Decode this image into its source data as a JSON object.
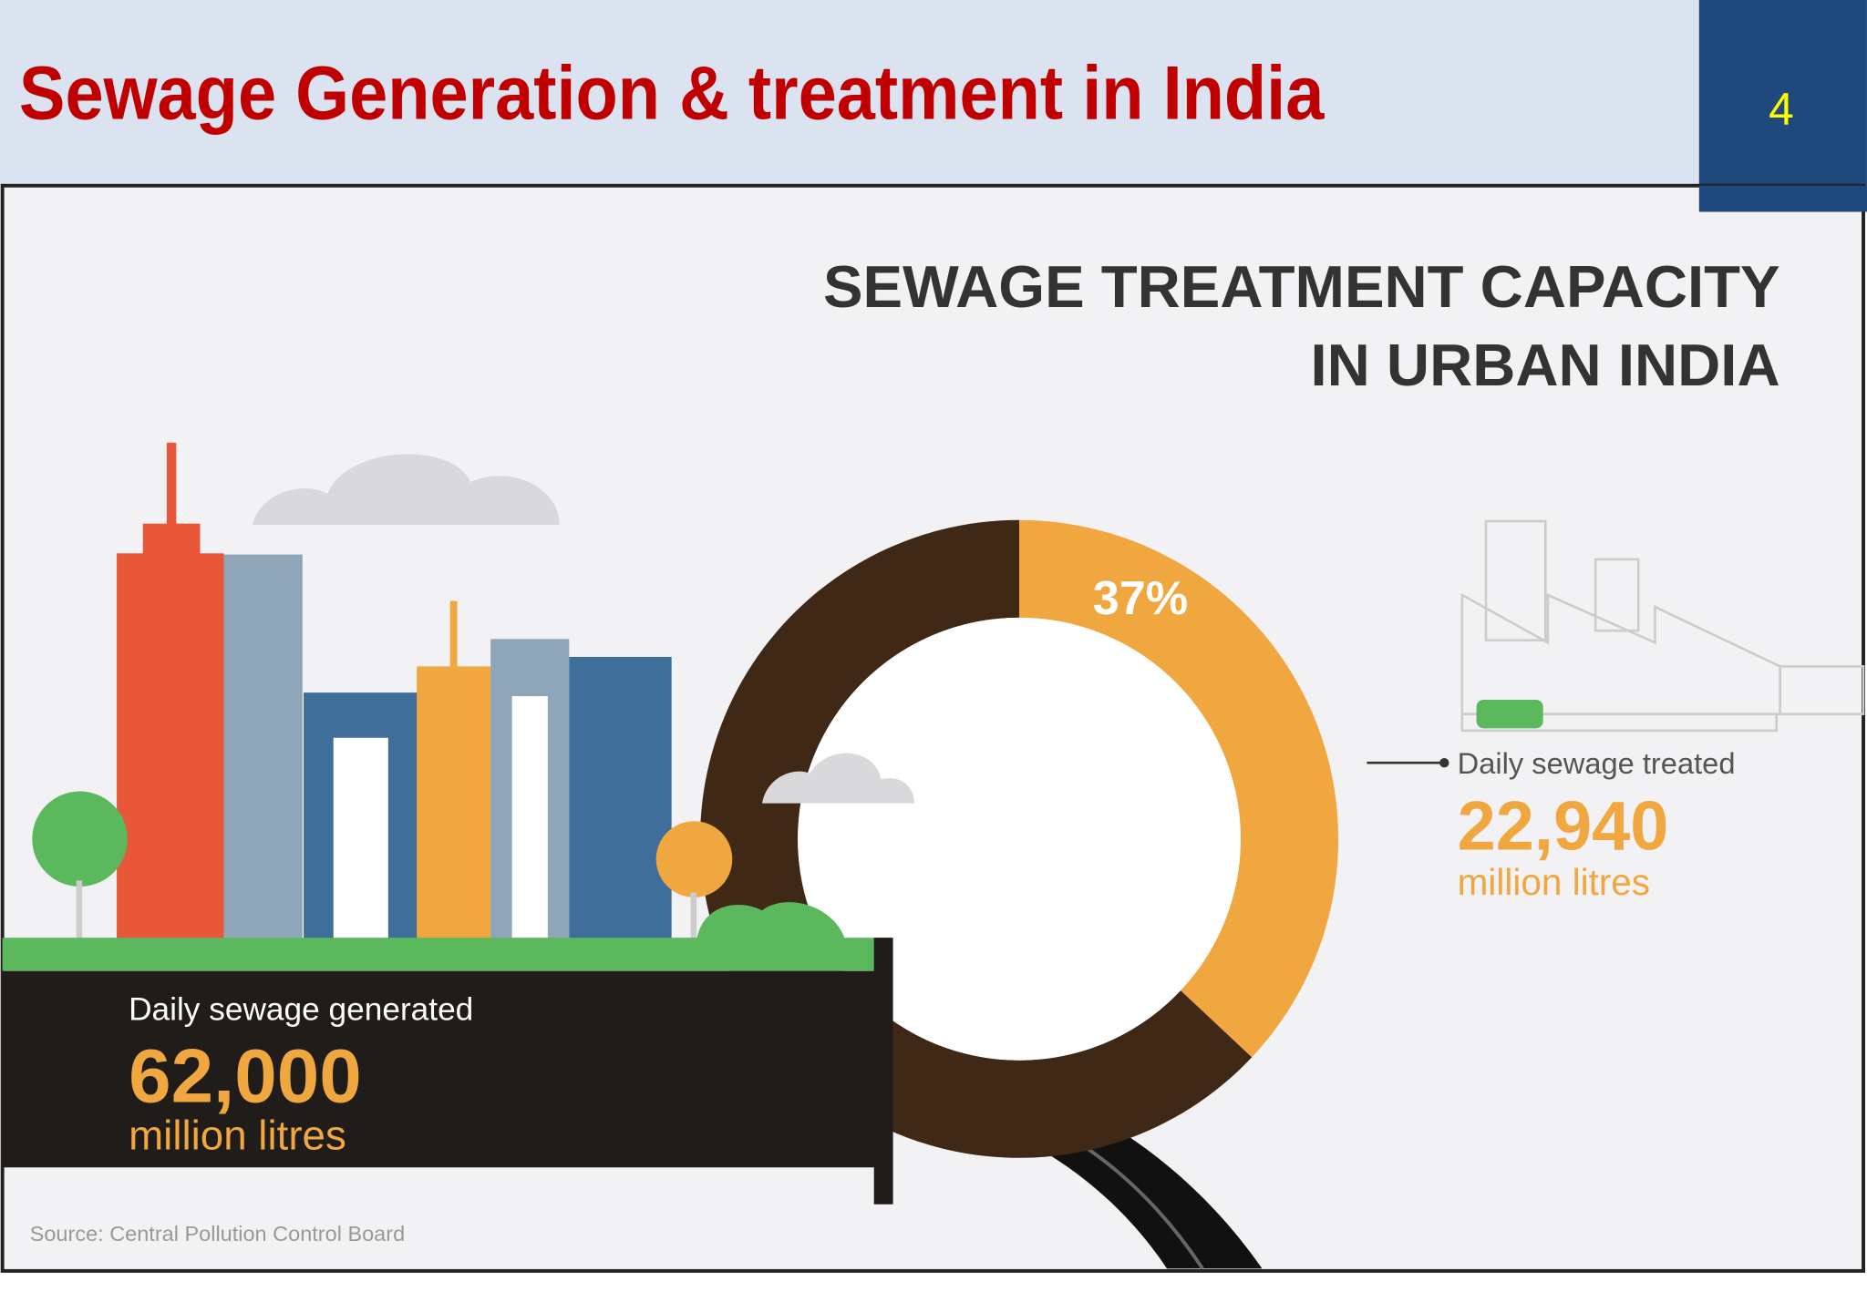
{
  "slide": {
    "title": "Sewage Generation & treatment in India",
    "page_number": "4"
  },
  "chart_data": {
    "type": "donut",
    "title_lines": [
      "SEWAGE TREATMENT CAPACITY",
      "IN URBAN INDIA"
    ],
    "values": [
      37,
      63
    ],
    "value_labels": [
      "37%",
      null
    ],
    "colors": [
      "#f0a73f",
      "#3f2816"
    ]
  },
  "infographic": {
    "treated": {
      "label": "Daily sewage treated",
      "amount": "22,940",
      "unit": "million litres"
    },
    "generated": {
      "label": "Daily sewage generated",
      "amount": "62,000",
      "unit": "million litres"
    },
    "source": "Source: Central Pollution Control Board"
  }
}
